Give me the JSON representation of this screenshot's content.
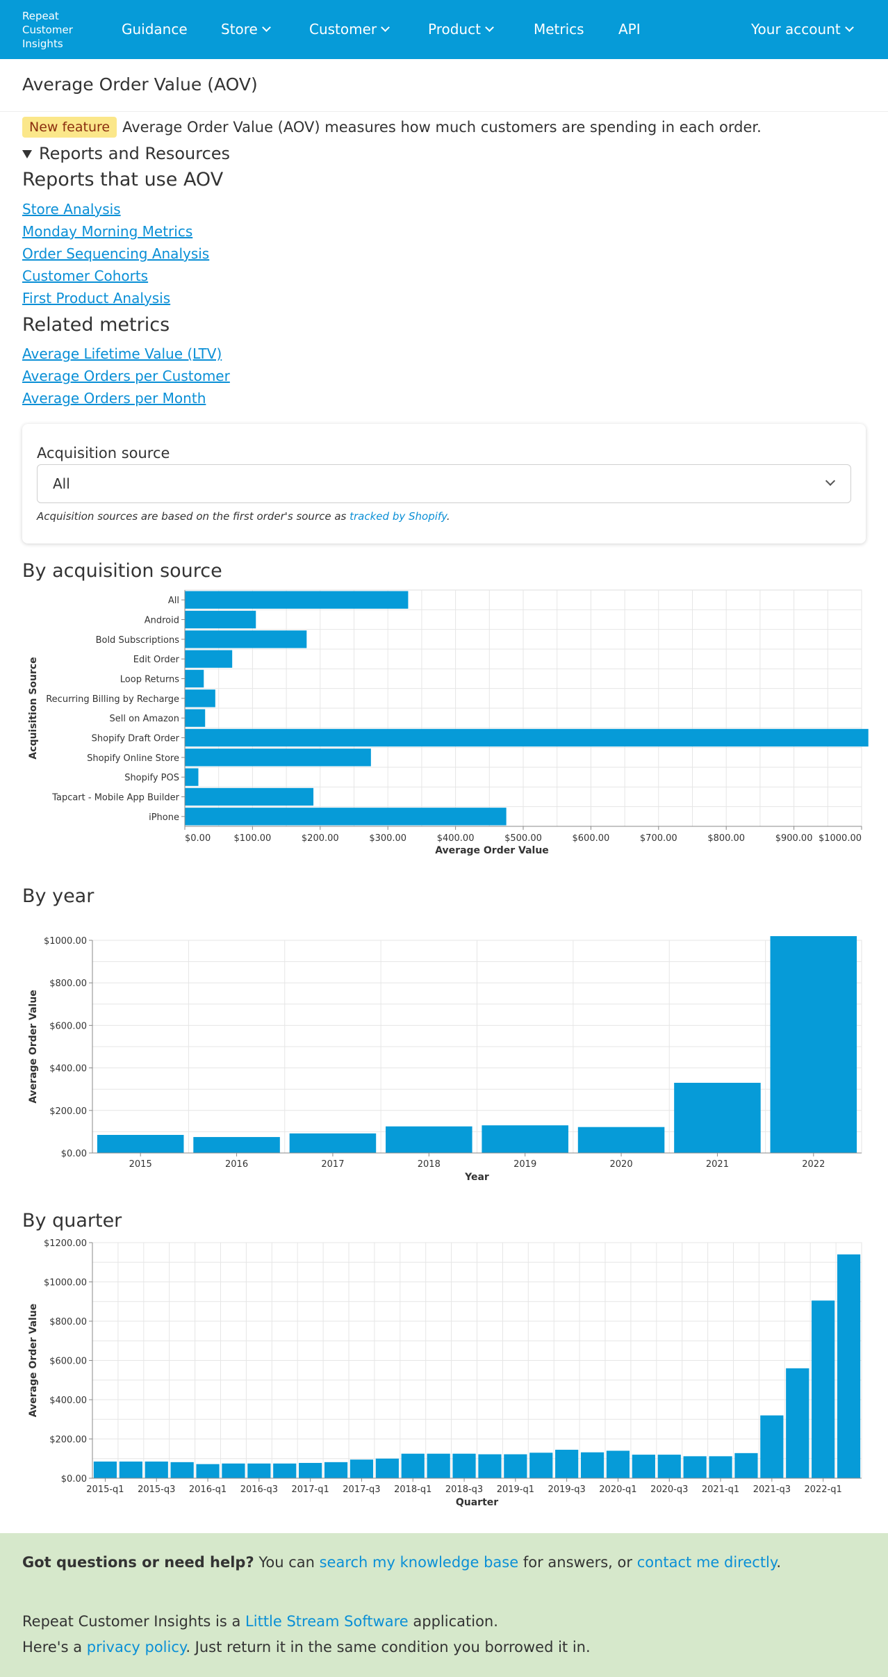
{
  "nav": {
    "brand": "Repeat Customer Insights",
    "items": [
      {
        "label": "Guidance",
        "dropdown": false
      },
      {
        "label": "Store",
        "dropdown": true
      },
      {
        "label": "Customer",
        "dropdown": true
      },
      {
        "label": "Product",
        "dropdown": true
      },
      {
        "label": "Metrics",
        "dropdown": false
      },
      {
        "label": "API",
        "dropdown": false
      }
    ],
    "account": "Your account"
  },
  "page": {
    "title": "Average Order Value (AOV)",
    "badge": "New feature",
    "intro": "Average Order Value (AOV) measures how much customers are spending in each order.",
    "details_summary": "Reports and Resources",
    "reports_heading": "Reports that use AOV",
    "reports": [
      "Store Analysis",
      "Monday Morning Metrics",
      "Order Sequencing Analysis",
      "Customer Cohorts",
      "First Product Analysis"
    ],
    "related_heading": "Related metrics",
    "related": [
      "Average Lifetime Value (LTV)",
      "Average Orders per Customer",
      "Average Orders per Month"
    ]
  },
  "filter": {
    "label": "Acquisition source",
    "selected": "All",
    "note_prefix": "Acquisition sources are based on the first order's source as ",
    "note_link": "tracked by Shopify",
    "note_suffix": "."
  },
  "colors": {
    "nav": "#069bd8",
    "bar": "#069bd8",
    "link": "#0a8fd6",
    "badge_bg": "#fbe78a",
    "footer_bg": "#d6e8cb"
  },
  "chart_data": [
    {
      "heading": "By acquisition source",
      "type": "bar",
      "orientation": "horizontal",
      "categories": [
        "All",
        "Android",
        "Bold Subscriptions",
        "Edit Order",
        "Loop Returns",
        "Recurring Billing by Recharge",
        "Sell on Amazon",
        "Shopify Draft Order",
        "Shopify Online Store",
        "Shopify POS",
        "Tapcart - Mobile App Builder",
        "iPhone"
      ],
      "values": [
        330,
        105,
        180,
        70,
        28,
        45,
        30,
        1010,
        275,
        20,
        190,
        475
      ],
      "xlabel": "Average Order Value",
      "ylabel": "Acquisition Source",
      "ticks": [
        "$0.00",
        "$100.00",
        "$200.00",
        "$300.00",
        "$400.00",
        "$500.00",
        "$600.00",
        "$700.00",
        "$800.00",
        "$900.00",
        "$1000.00"
      ],
      "xlim": [
        0,
        1000
      ],
      "grid": true
    },
    {
      "heading": "By year",
      "type": "bar",
      "categories": [
        "2015",
        "2016",
        "2017",
        "2018",
        "2019",
        "2020",
        "2021",
        "2022"
      ],
      "values": [
        85,
        75,
        92,
        125,
        130,
        122,
        330,
        1025
      ],
      "xlabel": "Year",
      "ylabel": "Average Order Value",
      "ticks": [
        "$0.00",
        "$200.00",
        "$400.00",
        "$600.00",
        "$800.00",
        "$1000.00"
      ],
      "ylim": [
        0,
        1000
      ],
      "grid": true
    },
    {
      "heading": "By quarter",
      "type": "bar",
      "categories": [
        "2015-q1",
        "2015-q2",
        "2015-q3",
        "2015-q4",
        "2016-q1",
        "2016-q2",
        "2016-q3",
        "2016-q4",
        "2017-q1",
        "2017-q2",
        "2017-q3",
        "2017-q4",
        "2018-q1",
        "2018-q2",
        "2018-q3",
        "2018-q4",
        "2019-q1",
        "2019-q2",
        "2019-q3",
        "2019-q4",
        "2020-q1",
        "2020-q2",
        "2020-q3",
        "2020-q4",
        "2021-q1",
        "2021-q2",
        "2021-q3",
        "2021-q4",
        "2022-q1",
        "2022-q2"
      ],
      "values": [
        85,
        85,
        85,
        82,
        72,
        75,
        75,
        75,
        78,
        82,
        95,
        100,
        125,
        125,
        125,
        122,
        122,
        130,
        145,
        132,
        140,
        120,
        120,
        112,
        112,
        128,
        320,
        560,
        905,
        1140
      ],
      "tick_labels": [
        "2015-q1",
        "2015-q3",
        "2016-q1",
        "2016-q3",
        "2017-q1",
        "2017-q3",
        "2018-q1",
        "2018-q3",
        "2019-q1",
        "2019-q3",
        "2020-q1",
        "2020-q3",
        "2021-q1",
        "2021-q3",
        "2022-q1"
      ],
      "xlabel": "Quarter",
      "ylabel": "Average Order Value",
      "ticks": [
        "$0.00",
        "$200.00",
        "$400.00",
        "$600.00",
        "$800.00",
        "$1000.00",
        "$1200.00"
      ],
      "ylim": [
        0,
        1200
      ],
      "grid": true
    }
  ],
  "footer": {
    "q_bold": "Got questions or need help?",
    "q_mid": " You can ",
    "q_link1": "search my knowledge base",
    "q_mid2": " for answers, or ",
    "q_link2": "contact me directly",
    "q_end": ".",
    "app_pre": "Repeat Customer Insights is a ",
    "app_link": "Little Stream Software",
    "app_post": " application.",
    "priv_pre": "Here's a ",
    "priv_link": "privacy policy",
    "priv_post": ". Just return it in the same condition you borrowed it in."
  }
}
